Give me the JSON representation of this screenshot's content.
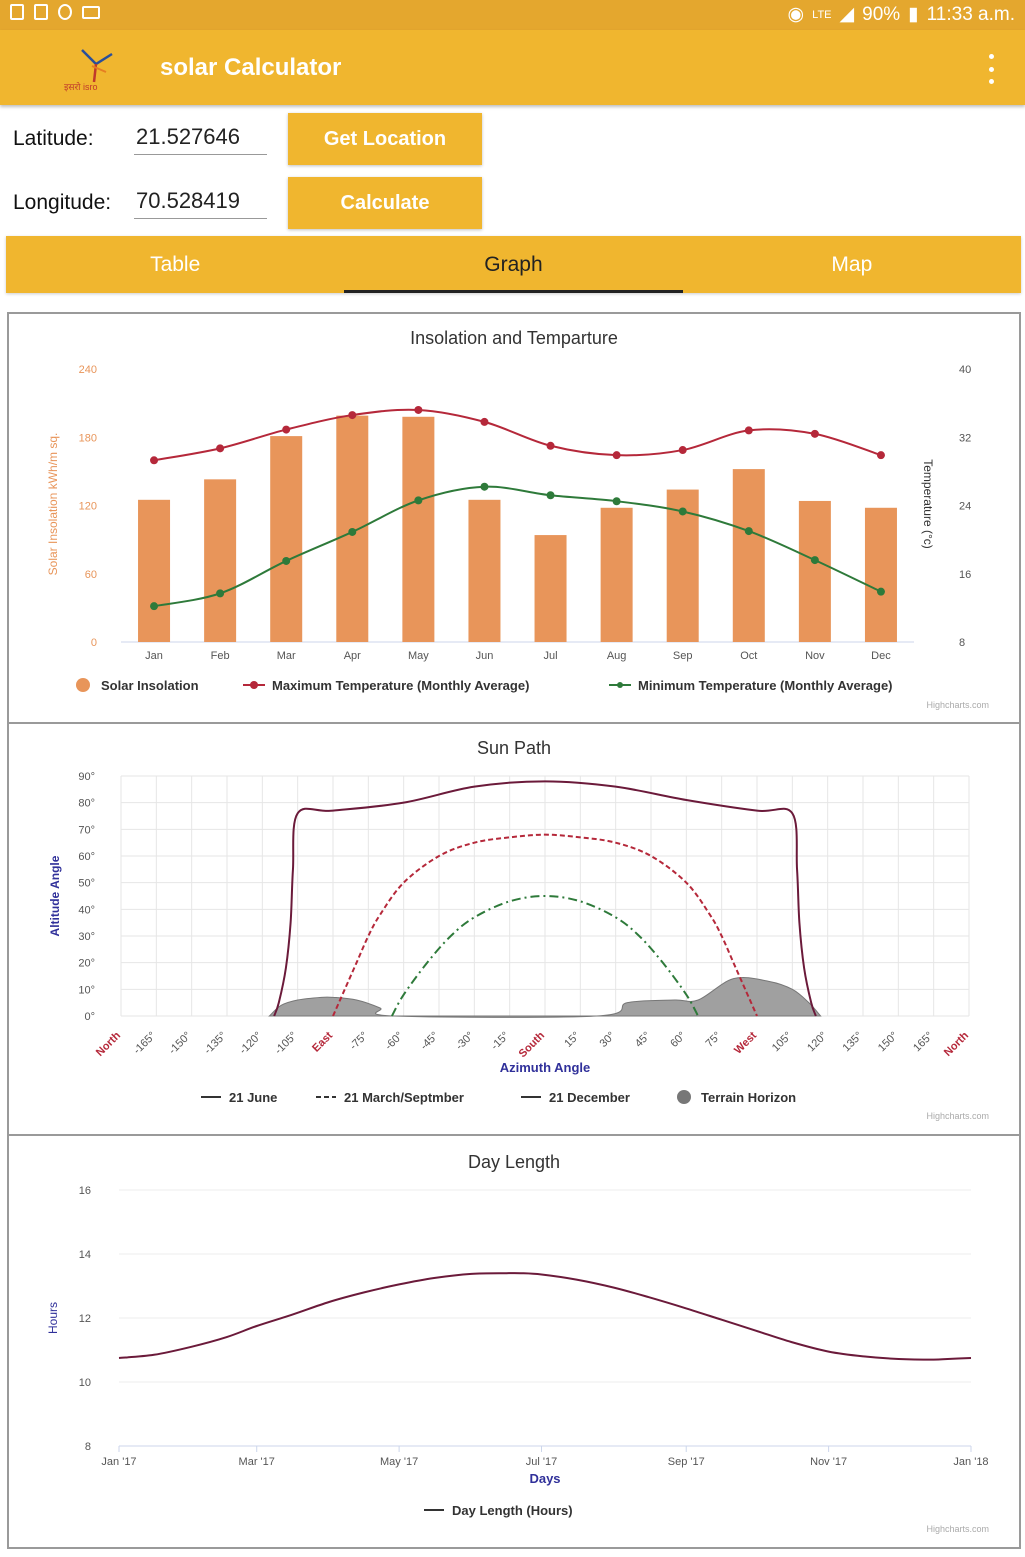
{
  "status_bar": {
    "battery": "90%",
    "time": "11:33 a.m.",
    "network": "LTE"
  },
  "app_bar": {
    "title": "solar Calculator",
    "logo_text": "इसरो isro"
  },
  "form": {
    "latitude_label": "Latitude:",
    "latitude_value": "21.527646",
    "longitude_label": "Longitude:",
    "longitude_value": "70.528419",
    "get_location_label": "Get Location",
    "calculate_label": "Calculate"
  },
  "tabs": [
    {
      "label": "Table"
    },
    {
      "label": "Graph"
    },
    {
      "label": "Map"
    }
  ],
  "credits": "Highcharts.com",
  "colors": {
    "accent": "#f0b62f",
    "bar": "#e8955a",
    "max_temp": "#b5283a",
    "min_temp": "#2e7a3a",
    "axis_title": "#30309a",
    "azimuth_red": "#b5283a",
    "day_line": "#6b1a3a"
  },
  "chart_data": [
    {
      "type": "bar",
      "title": "Insolation and Temparture",
      "categories": [
        "Jan",
        "Feb",
        "Mar",
        "Apr",
        "May",
        "Jun",
        "Jul",
        "Aug",
        "Sep",
        "Oct",
        "Nov",
        "Dec"
      ],
      "ylabel": "Solar Insolation kWh/m sq.",
      "ylim": [
        0,
        240
      ],
      "yticks": [
        "0",
        "60",
        "120",
        "180",
        "240"
      ],
      "y2label": "Temperature (°c)",
      "y2lim": [
        8,
        40
      ],
      "y2ticks": [
        "8",
        "16",
        "24",
        "32",
        "40"
      ],
      "series": [
        {
          "name": "Solar Insolation",
          "type": "bar",
          "axis": "left",
          "values": [
            125,
            143,
            181,
            199,
            198,
            125,
            94,
            118,
            134,
            152,
            124,
            118
          ]
        },
        {
          "name": "Maximum Temperature (Monthly Average)",
          "type": "line",
          "axis": "right",
          "values": [
            29.3,
            30.7,
            32.9,
            34.6,
            35.2,
            33.8,
            31.0,
            29.9,
            30.5,
            32.8,
            32.4,
            29.9
          ]
        },
        {
          "name": "Minimum Temperature (Monthly Average)",
          "type": "line",
          "axis": "right",
          "values": [
            12.2,
            13.7,
            17.5,
            20.9,
            24.6,
            26.2,
            25.2,
            24.5,
            23.3,
            21.0,
            17.6,
            13.9
          ]
        }
      ],
      "legend": "bottom"
    },
    {
      "type": "area",
      "title": "Sun Path",
      "xlabel": "Azimuth Angle",
      "ylabel": "Altitude Angle",
      "xlim": [
        -180,
        180
      ],
      "ylim": [
        0,
        90
      ],
      "xticks": [
        {
          "v": -180,
          "label": "North",
          "red": true
        },
        {
          "v": -165,
          "label": "-165°"
        },
        {
          "v": -150,
          "label": "-150°"
        },
        {
          "v": -135,
          "label": "-135°"
        },
        {
          "v": -120,
          "label": "-120°"
        },
        {
          "v": -105,
          "label": "-105°"
        },
        {
          "v": -90,
          "label": "East",
          "red": true
        },
        {
          "v": -75,
          "label": "-75°"
        },
        {
          "v": -60,
          "label": "-60°"
        },
        {
          "v": -45,
          "label": "-45°"
        },
        {
          "v": -30,
          "label": "-30°"
        },
        {
          "v": -15,
          "label": "-15°"
        },
        {
          "v": 0,
          "label": "South",
          "red": true
        },
        {
          "v": 15,
          "label": "15°"
        },
        {
          "v": 30,
          "label": "30°"
        },
        {
          "v": 45,
          "label": "45°"
        },
        {
          "v": 60,
          "label": "60°"
        },
        {
          "v": 75,
          "label": "75°"
        },
        {
          "v": 90,
          "label": "West",
          "red": true
        },
        {
          "v": 105,
          "label": "105°"
        },
        {
          "v": 120,
          "label": "120°"
        },
        {
          "v": 135,
          "label": "135°"
        },
        {
          "v": 150,
          "label": "150°"
        },
        {
          "v": 165,
          "label": "165°"
        },
        {
          "v": 180,
          "label": "North",
          "red": true
        }
      ],
      "yticks": [
        "0°",
        "10°",
        "20°",
        "30°",
        "40°",
        "50°",
        "60°",
        "70°",
        "80°",
        "90°"
      ],
      "series": [
        {
          "name": "21 June",
          "style": "solid",
          "x": [
            -115,
            -113,
            -110,
            -108,
            -107,
            -105,
            -90,
            -60,
            -30,
            0,
            30,
            60,
            90,
            105,
            107,
            108,
            110,
            113,
            115
          ],
          "y": [
            0,
            5,
            18,
            35,
            55,
            76,
            77,
            80,
            86,
            88,
            86,
            81,
            77,
            76,
            55,
            35,
            18,
            5,
            0
          ]
        },
        {
          "name": "21 March/Septmber",
          "style": "dashed",
          "x": [
            -90,
            -85,
            -80,
            -75,
            -70,
            -60,
            -45,
            -30,
            -15,
            0,
            15,
            30,
            45,
            60,
            70,
            75,
            80,
            85,
            90
          ],
          "y": [
            0,
            10,
            20,
            30,
            38,
            50,
            60,
            65,
            67,
            68,
            67,
            65,
            60,
            50,
            38,
            30,
            20,
            10,
            0
          ]
        },
        {
          "name": "21 December",
          "style": "dashdot",
          "x": [
            -65,
            -60,
            -50,
            -40,
            -30,
            -15,
            0,
            15,
            30,
            40,
            50,
            60,
            65
          ],
          "y": [
            0,
            8,
            20,
            30,
            37,
            43,
            45,
            43,
            37,
            30,
            20,
            8,
            0
          ]
        },
        {
          "name": "Terrain Horizon",
          "style": "area",
          "x": [
            -117,
            -112,
            -105,
            -95,
            -90,
            -80,
            -70,
            -64,
            22,
            35,
            55,
            65,
            80,
            95,
            105,
            112,
            117
          ],
          "y": [
            0,
            4,
            6,
            7,
            7,
            6,
            3,
            0,
            0,
            5,
            6,
            6,
            14,
            13,
            10,
            5,
            0
          ]
        }
      ],
      "legend": "bottom"
    },
    {
      "type": "line",
      "title": "Day Length",
      "xlabel": "Days",
      "ylabel": "Hours",
      "ylim": [
        8,
        16
      ],
      "yticks": [
        "8",
        "10",
        "12",
        "14",
        "16"
      ],
      "xticks": [
        {
          "v": 0,
          "label": "Jan '17"
        },
        {
          "v": 59,
          "label": "Mar '17"
        },
        {
          "v": 120,
          "label": "May '17"
        },
        {
          "v": 181,
          "label": "Jul '17"
        },
        {
          "v": 243,
          "label": "Sep '17"
        },
        {
          "v": 304,
          "label": "Nov '17"
        },
        {
          "v": 365,
          "label": "Jan '18"
        }
      ],
      "series": [
        {
          "name": "Day Length (Hours)",
          "x": [
            0,
            15,
            31,
            46,
            59,
            74,
            90,
            105,
            120,
            135,
            151,
            166,
            172,
            181,
            196,
            212,
            227,
            243,
            258,
            273,
            288,
            304,
            319,
            334,
            349,
            355,
            365
          ],
          "y": [
            10.75,
            10.85,
            11.1,
            11.4,
            11.75,
            12.1,
            12.5,
            12.8,
            13.05,
            13.25,
            13.38,
            13.4,
            13.4,
            13.36,
            13.2,
            12.95,
            12.65,
            12.3,
            11.95,
            11.6,
            11.25,
            10.95,
            10.8,
            10.72,
            10.7,
            10.72,
            10.75
          ]
        }
      ],
      "legend": "bottom"
    }
  ]
}
